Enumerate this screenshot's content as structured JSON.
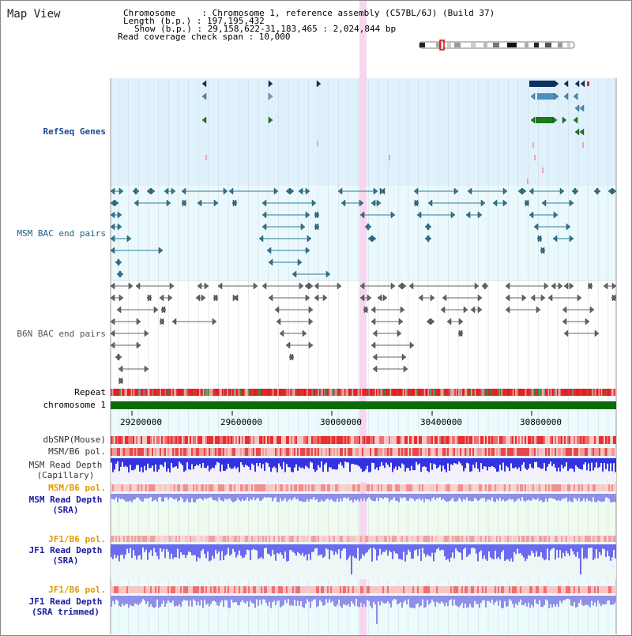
{
  "view": {
    "title": "Map View",
    "header": {
      "chromosome": "Chromosome     : Chromosome 1, reference assembly (C57BL/6J) (Build 37)",
      "length": "Length (b.p.) : 197,195,432",
      "show": "Show (b.p.) : 29,158,622-31,183,465 : 2,024,844 bp",
      "coverage": "Read coverage check span : 10,000"
    }
  },
  "tracks": {
    "refseq": {
      "label": "RefSeq Genes",
      "color": "#1a4d8c"
    },
    "msm_bac": {
      "label": "MSM BAC end pairs",
      "color": "#1a5f80"
    },
    "b6n_bac": {
      "label": "B6N BAC end pairs",
      "color": "#555555"
    },
    "repeat": {
      "label": "Repeat"
    },
    "chromosome": {
      "label": "chromosome 1",
      "color": "#0b6b0b"
    },
    "dbsnp": {
      "label": "dbSNP(Mouse)"
    },
    "msm_b6_pol": {
      "label": "MSM/B6 pol."
    },
    "msm_depth_cap": {
      "label_1": "MSM Read Depth",
      "label_2": "(Capillary)"
    },
    "msm_b6_pol_sra": {
      "label": "MSM/B6 pol.",
      "color": "#e09a00"
    },
    "msm_depth_sra": {
      "label_1": "MSM Read Depth",
      "label_2": "(SRA)",
      "color": "#1a1aa0"
    },
    "jf1_b6_pol": {
      "label": "JF1/B6 pol.",
      "color": "#e09a00"
    },
    "jf1_depth_sra": {
      "label_1": "JF1 Read Depth",
      "label_2": "(SRA)",
      "color": "#1a1aa0"
    },
    "jf1_b6_pol_2": {
      "label": "JF1/B6 pol.",
      "color": "#e09a00"
    },
    "jf1_depth_trim": {
      "label_1": "JF1 Read Depth",
      "label_2": "(SRA trimmed)",
      "color": "#1a1aa0"
    }
  },
  "axis": {
    "ticks": [
      "29200000",
      "29600000",
      "30000000",
      "30400000",
      "30800000"
    ]
  },
  "colors": {
    "refseq_bg": "#dff1fb",
    "bac_bg": "#eaf9fb",
    "axis_bg": "#ecfcfc",
    "highlight": "#f7d6ef",
    "gene_dark": "#0d2f66",
    "gene_mid": "#4a90c0",
    "gene_green": "#1a7a1a"
  }
}
